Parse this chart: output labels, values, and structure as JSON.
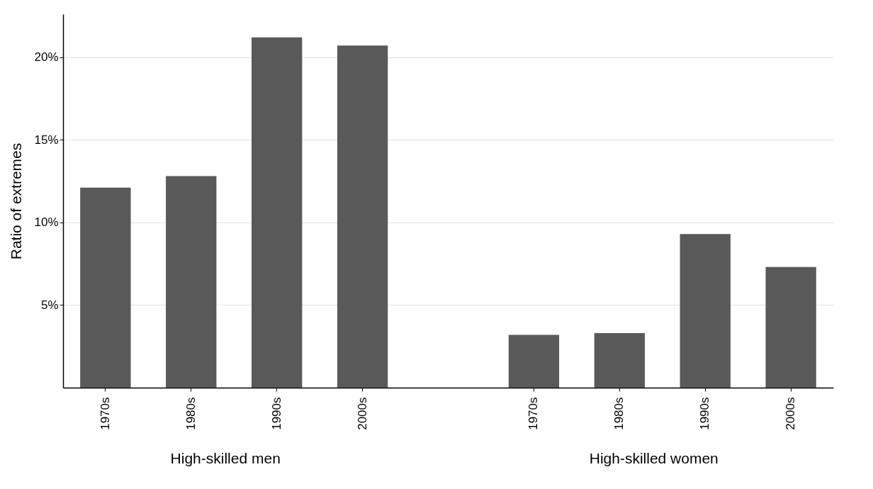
{
  "chart_data": {
    "type": "bar",
    "ylabel": "Ratio of extremes",
    "categories": [
      "1970s",
      "1980s",
      "1990s",
      "2000s",
      "1970s",
      "1980s",
      "1990s",
      "2000s"
    ],
    "values": [
      12.1,
      12.8,
      21.2,
      20.7,
      3.2,
      3.3,
      9.3,
      7.3
    ],
    "color": "#595959",
    "ylim": [
      0,
      22.6
    ],
    "yticks": [
      {
        "value": 5,
        "label": "5%"
      },
      {
        "value": 10,
        "label": "10%"
      },
      {
        "value": 15,
        "label": "15%"
      },
      {
        "value": 20,
        "label": "20%"
      }
    ],
    "grid": "y",
    "annotations": [
      "High-skilled men",
      "High-skilled women"
    ]
  }
}
